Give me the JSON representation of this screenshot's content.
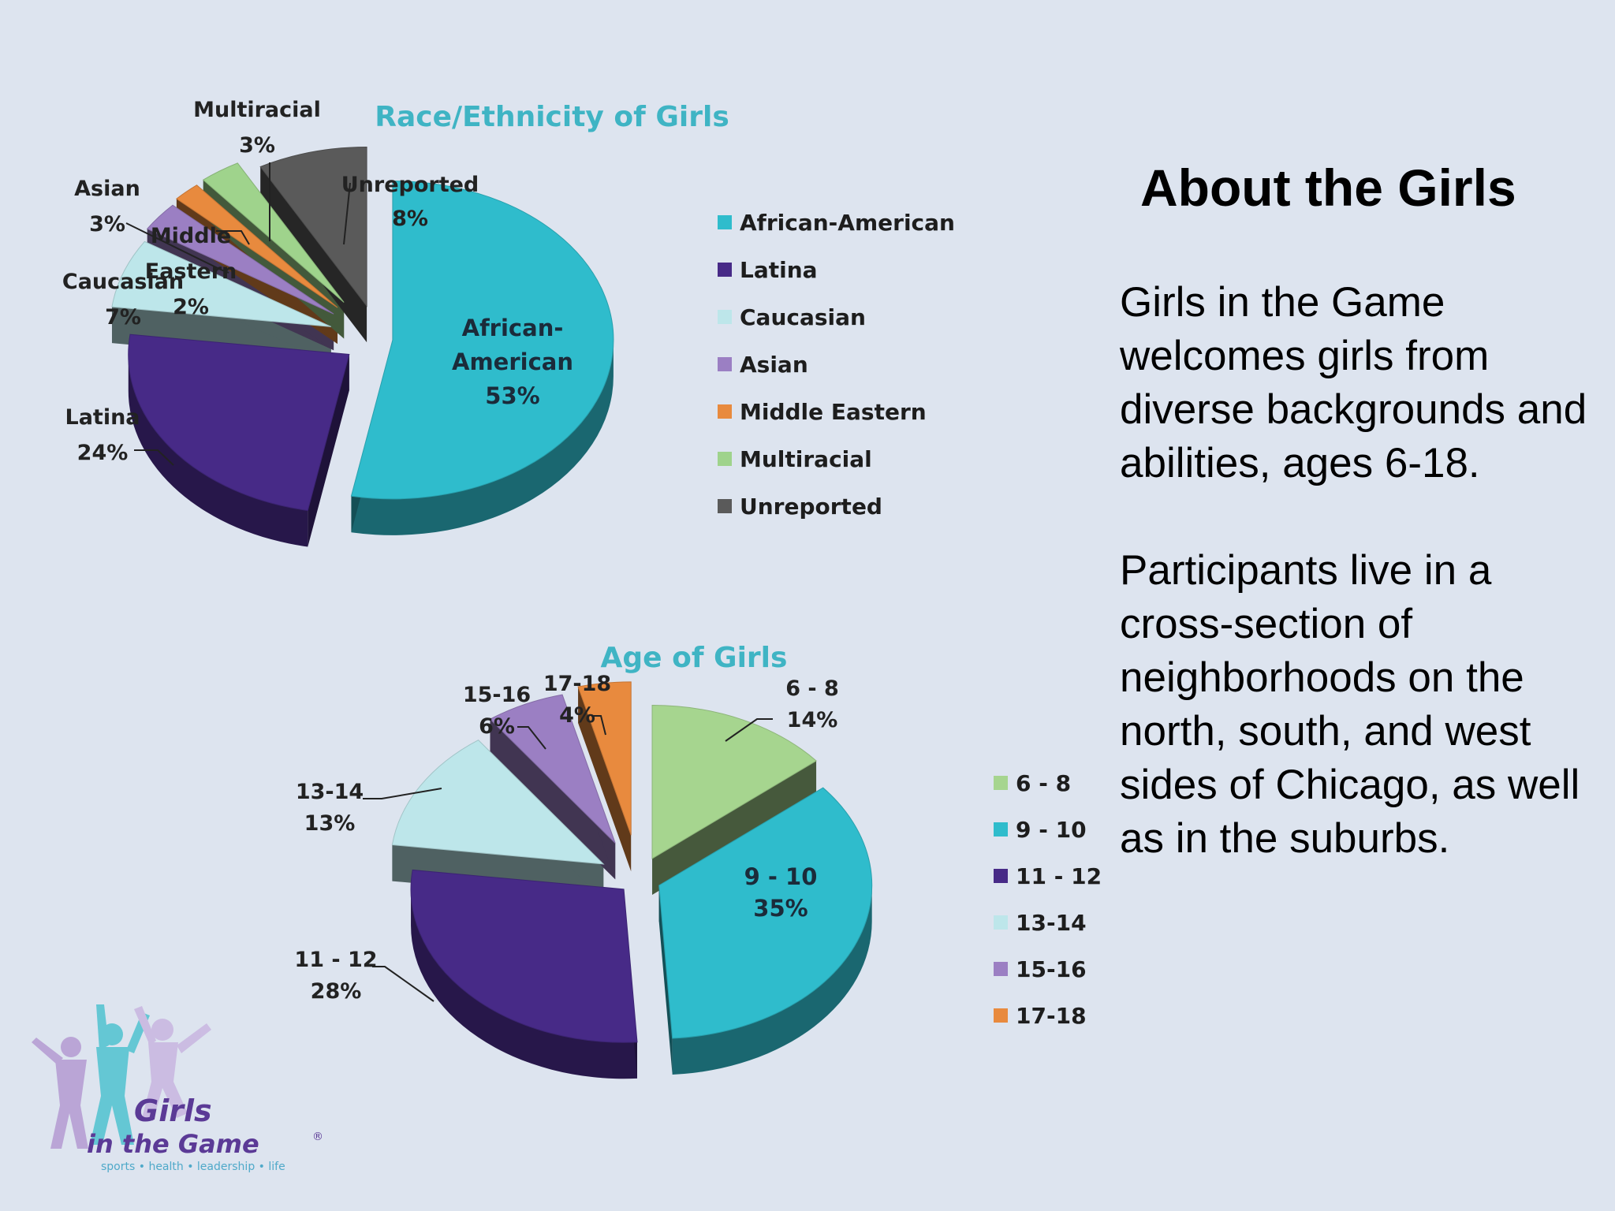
{
  "about": {
    "title": "About the Girls",
    "paragraph1": "Girls in the Game welcomes girls from diverse backgrounds and abilities, ages 6-18.",
    "paragraph2": "Participants live in a cross-section of neighborhoods on the north, south, and west sides of Chicago, as well as in the suburbs."
  },
  "logo": {
    "line1": "Girls",
    "line2": "in the Game",
    "registered": "®",
    "tagline": "sports • health • leadership • life",
    "colors": {
      "purple": "#5b3a96",
      "teal": "#4fc3d0",
      "lavender": "#b59bd2"
    }
  },
  "chart_data": [
    {
      "type": "pie",
      "title": "Race/Ethnicity of Girls",
      "title_color": "#3fb4c4",
      "legend_position": "right",
      "slices": [
        {
          "label": "African-American",
          "value": 53,
          "display": "53%",
          "color": "#2fbccc",
          "callout": [
            "African-",
            "American",
            "53%"
          ]
        },
        {
          "label": "Latina",
          "value": 24,
          "display": "24%",
          "color": "#472a87",
          "callout": [
            "Latina",
            "24%"
          ]
        },
        {
          "label": "Caucasian",
          "value": 7,
          "display": "7%",
          "color": "#bde6ea",
          "callout": [
            "Caucasian",
            "7%"
          ]
        },
        {
          "label": "Asian",
          "value": 3,
          "display": "3%",
          "color": "#9b7fc3",
          "callout": [
            "Asian",
            "3%"
          ]
        },
        {
          "label": "Middle Eastern",
          "value": 2,
          "display": "2%",
          "color": "#e88a3e",
          "callout": [
            "Middle",
            "Eastern",
            "2%"
          ]
        },
        {
          "label": "Multiracial",
          "value": 3,
          "display": "3%",
          "color": "#9fd38c",
          "callout": [
            "Multiracial",
            "3%"
          ]
        },
        {
          "label": "Unreported",
          "value": 8,
          "display": "8%",
          "color": "#5a5a5a",
          "callout": [
            "Unreported",
            "8%"
          ]
        }
      ]
    },
    {
      "type": "pie",
      "title": "Age of Girls",
      "title_color": "#3fb4c4",
      "legend_position": "right",
      "slices": [
        {
          "label": "6 - 8",
          "value": 14,
          "display": "14%",
          "color": "#a6d58f",
          "callout": [
            "6 - 8",
            "14%"
          ]
        },
        {
          "label": "9 - 10",
          "value": 35,
          "display": "35%",
          "color": "#2fbccc",
          "callout": [
            "9 - 10",
            "35%"
          ]
        },
        {
          "label": "11 - 12",
          "value": 28,
          "display": "28%",
          "color": "#472a87",
          "callout": [
            "11 - 12",
            "28%"
          ]
        },
        {
          "label": "13-14",
          "value": 13,
          "display": "13%",
          "color": "#bde6ea",
          "callout": [
            "13-14",
            "13%"
          ]
        },
        {
          "label": "15-16",
          "value": 6,
          "display": "6%",
          "color": "#9b7fc3",
          "callout": [
            "15-16",
            "6%"
          ]
        },
        {
          "label": "17-18",
          "value": 4,
          "display": "4%",
          "color": "#e88a3e",
          "callout": [
            "17-18",
            "4%"
          ]
        }
      ]
    }
  ]
}
